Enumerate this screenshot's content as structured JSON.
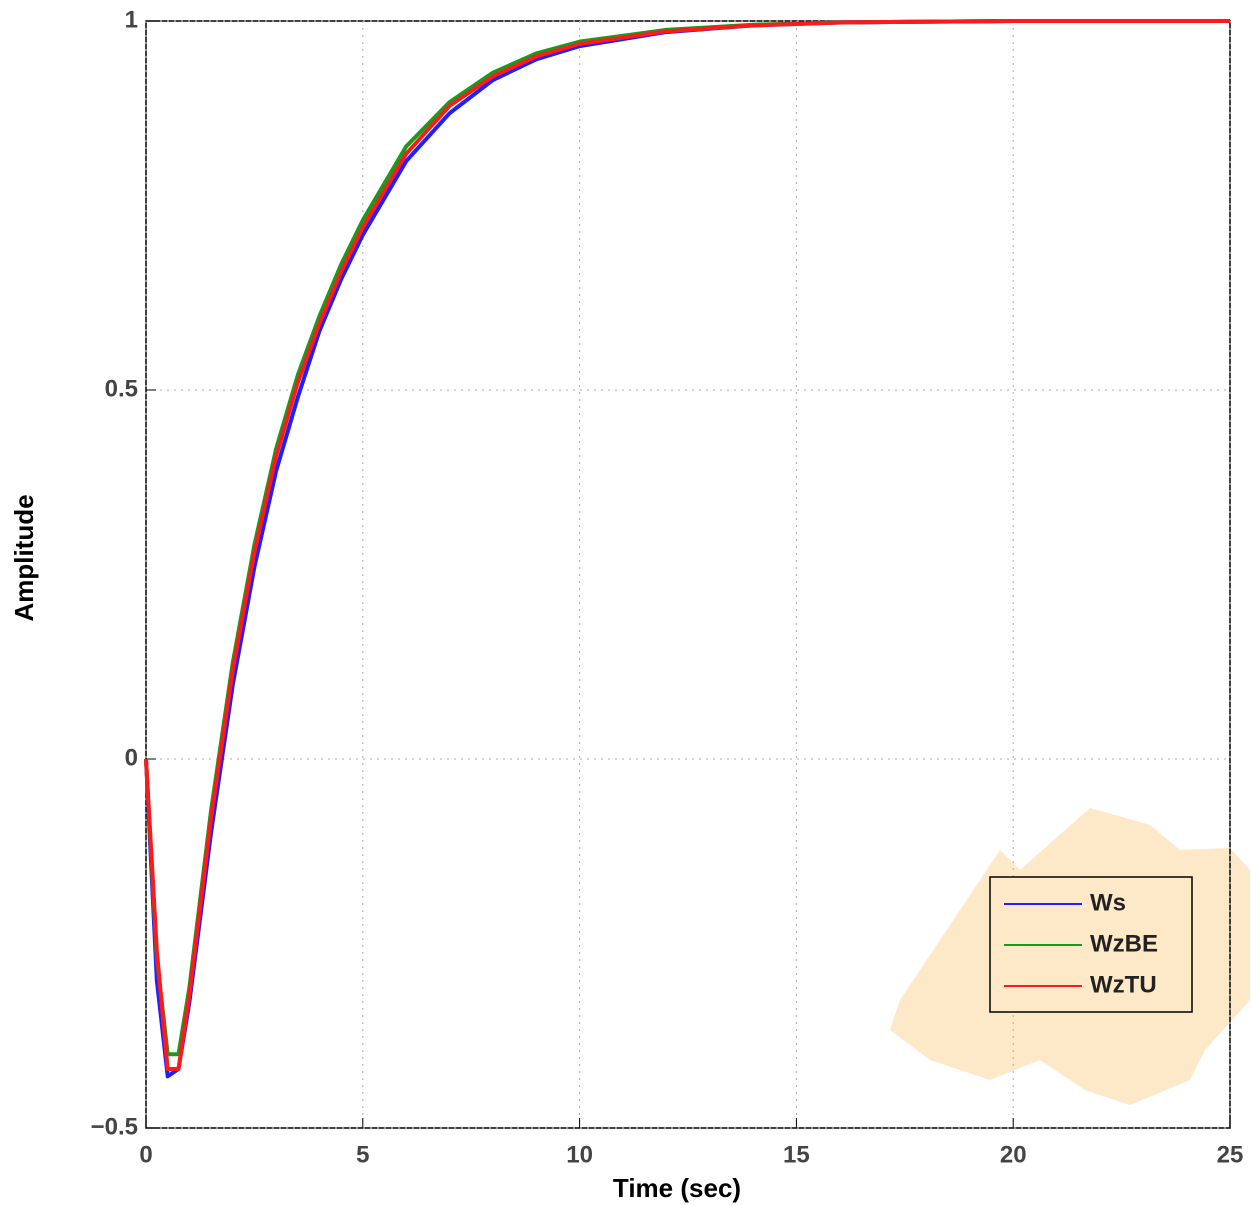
{
  "chart_data": {
    "type": "line",
    "xlabel": "Time (sec)",
    "ylabel": "Amplitude",
    "x": [
      0,
      0.25,
      0.5,
      0.75,
      1,
      1.5,
      2,
      2.5,
      3,
      3.5,
      4,
      4.5,
      5,
      6,
      7,
      8,
      9,
      10,
      12,
      14,
      16,
      20,
      25
    ],
    "series": [
      {
        "name": "Ws",
        "color": "#1f1fff",
        "values": [
          0,
          -0.3,
          -0.43,
          -0.42,
          -0.33,
          -0.1,
          0.1,
          0.26,
          0.39,
          0.49,
          0.58,
          0.65,
          0.71,
          0.81,
          0.875,
          0.92,
          0.948,
          0.966,
          0.985,
          0.994,
          0.998,
          1,
          1
        ]
      },
      {
        "name": "WzBE",
        "color": "#1a9a1a",
        "values": [
          0,
          -0.27,
          -0.4,
          -0.4,
          -0.31,
          -0.07,
          0.13,
          0.29,
          0.42,
          0.52,
          0.6,
          0.67,
          0.73,
          0.83,
          0.89,
          0.93,
          0.956,
          0.972,
          0.988,
          0.995,
          0.998,
          1,
          1
        ]
      },
      {
        "name": "WzTU",
        "color": "#ff1a1a",
        "values": [
          0,
          -0.26,
          -0.42,
          -0.42,
          -0.32,
          -0.08,
          0.12,
          0.28,
          0.41,
          0.51,
          0.59,
          0.66,
          0.72,
          0.82,
          0.885,
          0.925,
          0.952,
          0.969,
          0.986,
          0.994,
          0.998,
          1,
          1
        ]
      }
    ],
    "xlim": [
      0,
      25
    ],
    "xticks": [
      0,
      5,
      10,
      15,
      20,
      25
    ],
    "ylim": [
      -0.5,
      1
    ],
    "yticks": [
      {
        "value": -0.5,
        "label": "−0.5"
      },
      0,
      0.5,
      1
    ],
    "grid": true,
    "legend": "lower right"
  }
}
